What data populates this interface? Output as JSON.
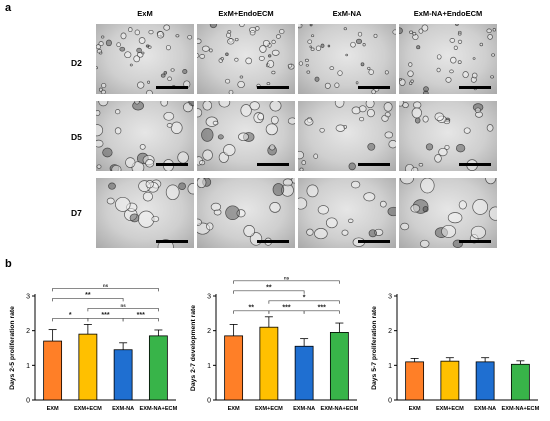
{
  "panel_a": {
    "letter": "a",
    "columns": [
      "ExM",
      "ExM+EndoECM",
      "ExM-NA",
      "ExM-NA+EndoECM"
    ],
    "rows": [
      "D2",
      "D5",
      "D7"
    ]
  },
  "panel_b": {
    "letter": "b"
  },
  "chart_data": [
    {
      "type": "bar",
      "ylabel": "Days 2-5 proliferation rate",
      "categories": [
        "EXM",
        "EXM+ECM",
        "EXM-NA",
        "EXM-NA+ECM"
      ],
      "values": [
        1.7,
        1.9,
        1.45,
        1.85
      ],
      "errors": [
        0.33,
        0.28,
        0.2,
        0.17
      ],
      "colors": [
        "#ff7f27",
        "#ffc000",
        "#1f6fd1",
        "#38b449"
      ],
      "ylim": [
        0,
        3
      ],
      "yticks": [
        0,
        1,
        2,
        3
      ],
      "significance": [
        {
          "from": 0,
          "to": 3,
          "label": "ns"
        },
        {
          "from": 0,
          "to": 2,
          "label": "**"
        },
        {
          "from": 1,
          "to": 3,
          "label": "ns"
        },
        {
          "from": 0,
          "to": 1,
          "label": "*"
        },
        {
          "from": 1,
          "to": 2,
          "label": "***"
        },
        {
          "from": 2,
          "to": 3,
          "label": "***"
        }
      ]
    },
    {
      "type": "bar",
      "ylabel": "Days 2-7 development rate",
      "categories": [
        "EXM",
        "EXM+ECM",
        "EXM-NA",
        "EXM-NA+ECM"
      ],
      "values": [
        1.85,
        2.1,
        1.55,
        1.95
      ],
      "errors": [
        0.33,
        0.3,
        0.22,
        0.27
      ],
      "colors": [
        "#ff7f27",
        "#ffc000",
        "#1f6fd1",
        "#38b449"
      ],
      "ylim": [
        0,
        3
      ],
      "yticks": [
        0,
        1,
        2,
        3
      ],
      "significance": [
        {
          "from": 0,
          "to": 3,
          "label": "ns"
        },
        {
          "from": 0,
          "to": 2,
          "label": "**"
        },
        {
          "from": 1,
          "to": 3,
          "label": "*"
        },
        {
          "from": 0,
          "to": 1,
          "label": "**"
        },
        {
          "from": 1,
          "to": 2,
          "label": "***"
        },
        {
          "from": 2,
          "to": 3,
          "label": "***"
        }
      ]
    },
    {
      "type": "bar",
      "ylabel": "Days 5-7 proliferation rate",
      "categories": [
        "EXM",
        "EXM+ECM",
        "EXM-NA",
        "EXM-NA+ECM"
      ],
      "values": [
        1.1,
        1.12,
        1.1,
        1.03
      ],
      "errors": [
        0.1,
        0.1,
        0.12,
        0.1
      ],
      "colors": [
        "#ff7f27",
        "#ffc000",
        "#1f6fd1",
        "#38b449"
      ],
      "ylim": [
        0,
        3
      ],
      "yticks": [
        0,
        1,
        2,
        3
      ],
      "significance": []
    }
  ]
}
